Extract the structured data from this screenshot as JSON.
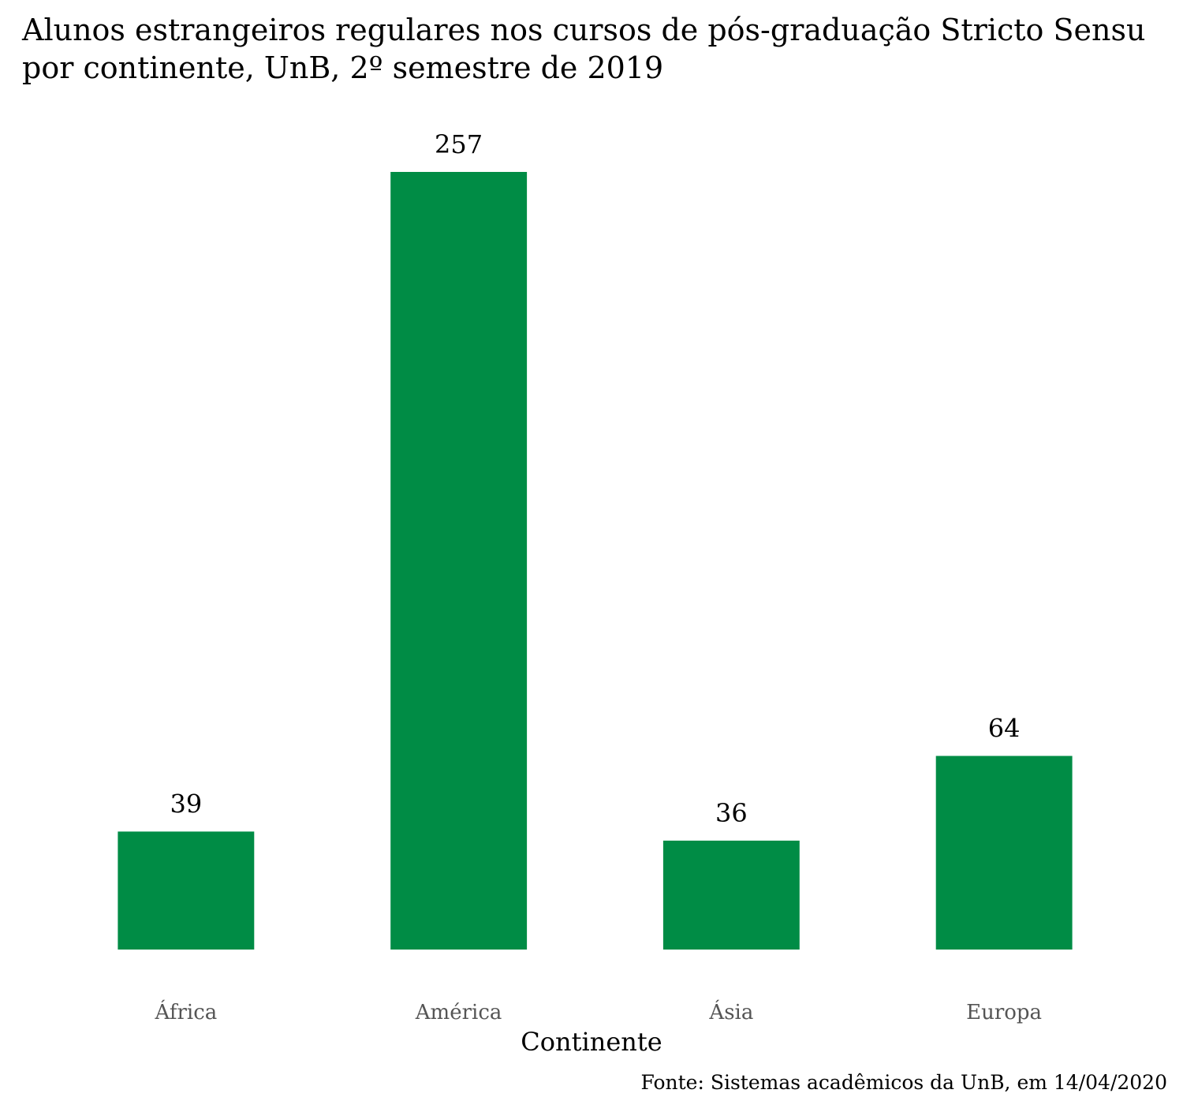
{
  "chart_data": {
    "type": "bar",
    "title_lines": [
      "Alunos estrangeiros regulares nos cursos de pós-graduação Stricto Sensu",
      "por continente, UnB, 2º semestre de 2019"
    ],
    "categories": [
      "África",
      "América",
      "Ásia",
      "Europa"
    ],
    "values": [
      39,
      257,
      36,
      64
    ],
    "data_labels": [
      "39",
      "257",
      "36",
      "64"
    ],
    "xlabel": "Continente",
    "ylabel": "",
    "ylim": [
      0,
      257
    ],
    "grid": false,
    "legend": "none",
    "caption": "Fonte: Sistemas acadêmicos da UnB, em 14/04/2020",
    "bar_color": "#008C45",
    "tick_label_color": "#555555",
    "text_color": "#000000"
  }
}
